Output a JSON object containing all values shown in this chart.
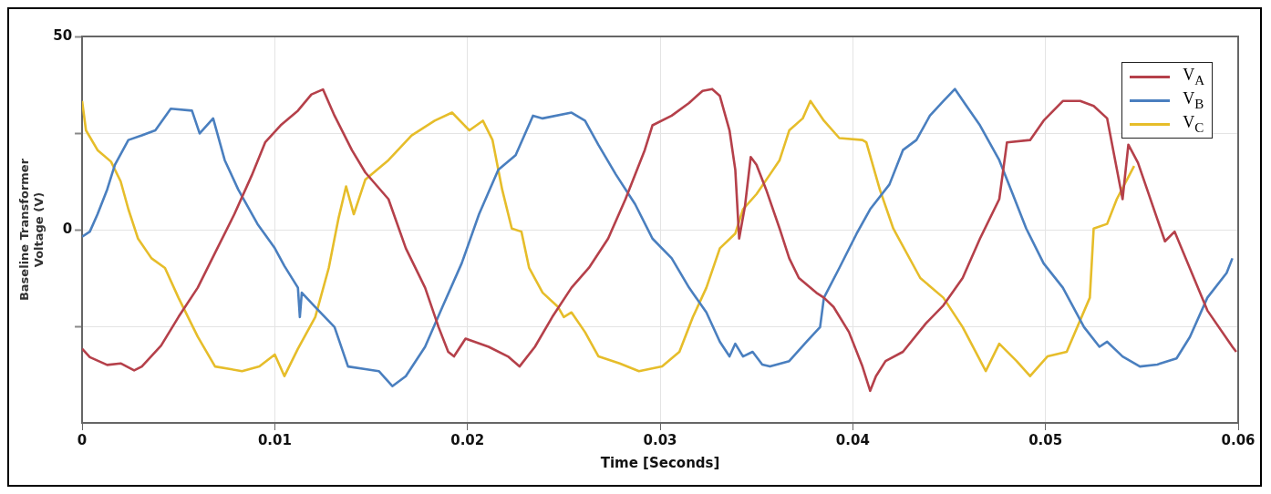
{
  "chart_data": {
    "type": "line",
    "xlabel": "Time [Seconds]",
    "ylabel": "Baseline Transformer\nVoltage (V)",
    "xlim": [
      0,
      0.06
    ],
    "xticks": [
      0,
      0.01,
      0.02,
      0.03,
      0.04,
      0.05,
      0.06
    ],
    "ylim": [
      -50,
      50
    ],
    "yticks": [
      50,
      {
        "value": 25,
        "label": null
      },
      0,
      {
        "value": -25,
        "label": null
      }
    ],
    "grid": true,
    "legend": "top right",
    "marker": "none",
    "line_style": "solid",
    "series": [
      {
        "name": "V$_{A}$",
        "color": "#b5404a",
        "x": [
          0,
          0.0004,
          0.0013,
          0.002,
          0.0027,
          0.0031,
          0.0041,
          0.005,
          0.006,
          0.0069,
          0.0079,
          0.0088,
          0.0095,
          0.0103,
          0.0112,
          0.0119,
          0.0125,
          0.0131,
          0.014,
          0.0147,
          0.0159,
          0.0168,
          0.0178,
          0.0185,
          0.019,
          0.0193,
          0.0199,
          0.0211,
          0.0221,
          0.0227,
          0.0235,
          0.0244,
          0.0254,
          0.0263,
          0.0273,
          0.0282,
          0.0292,
          0.0296,
          0.0306,
          0.0315,
          0.0322,
          0.0327,
          0.0331,
          0.0336,
          0.0339,
          0.0341,
          0.0344,
          0.0347,
          0.035,
          0.0355,
          0.0362,
          0.0367,
          0.0372,
          0.0381,
          0.0385,
          0.039,
          0.0398,
          0.0405,
          0.0409,
          0.0412,
          0.0417,
          0.0426,
          0.0438,
          0.0447,
          0.0457,
          0.0466,
          0.0476,
          0.048,
          0.0492,
          0.0499,
          0.0509,
          0.0518,
          0.0525,
          0.0532,
          0.054,
          0.0543,
          0.0548,
          0.0562,
          0.0567,
          0.0584,
          0.0597,
          0.0599
        ],
        "values": [
          -30.8,
          -33,
          -35,
          -34.6,
          -36.4,
          -35.4,
          -30,
          -22.6,
          -15,
          -6,
          4,
          14,
          22.6,
          27,
          30.8,
          35,
          36.3,
          29.5,
          20.6,
          14.8,
          7.9,
          -4.8,
          -15,
          -25.2,
          -31.6,
          -32.8,
          -28.2,
          -30.3,
          -32.8,
          -35.4,
          -30.3,
          -22.6,
          -15,
          -9.9,
          -2.3,
          7.9,
          20.6,
          27,
          29.5,
          32.8,
          35.9,
          36.4,
          34.6,
          25.7,
          15.5,
          -2.3,
          6,
          18.8,
          16.8,
          10.4,
          0.3,
          -7.4,
          -12.5,
          -16.3,
          -17.6,
          -20,
          -26.5,
          -35.4,
          -41.7,
          -37.9,
          -34,
          -31.6,
          -24.2,
          -19.6,
          -12.5,
          -2.3,
          7.9,
          22.6,
          23.2,
          28.2,
          33.3,
          33.3,
          32,
          28.8,
          7.9,
          22,
          17.3,
          -3,
          -0.5,
          -20.9,
          -30.3,
          -31.6
        ]
      },
      {
        "name": "V$_{B}$",
        "color": "#4a7fbf",
        "x": [
          0,
          0.0004,
          0.0008,
          0.0013,
          0.0017,
          0.0024,
          0.0031,
          0.0038,
          0.0046,
          0.0057,
          0.0061,
          0.0068,
          0.0074,
          0.0081,
          0.0091,
          0.01,
          0.0105,
          0.0112,
          0.0113,
          0.0114,
          0.0121,
          0.0131,
          0.0138,
          0.0147,
          0.0154,
          0.0161,
          0.0168,
          0.0178,
          0.0187,
          0.0197,
          0.0206,
          0.0216,
          0.0225,
          0.0234,
          0.0239,
          0.0254,
          0.0261,
          0.0268,
          0.0277,
          0.0287,
          0.0296,
          0.0306,
          0.0315,
          0.0324,
          0.0331,
          0.0336,
          0.0339,
          0.0343,
          0.0348,
          0.0353,
          0.0357,
          0.0367,
          0.0376,
          0.0383,
          0.0385,
          0.0393,
          0.0402,
          0.0409,
          0.0419,
          0.0426,
          0.0433,
          0.044,
          0.0447,
          0.0453,
          0.0459,
          0.0466,
          0.0476,
          0.0483,
          0.049,
          0.0499,
          0.0509,
          0.052,
          0.0528,
          0.0532,
          0.054,
          0.0549,
          0.0558,
          0.0568,
          0.0575,
          0.0584,
          0.0594,
          0.0597
        ],
        "values": [
          -1.8,
          -0.5,
          4,
          10.4,
          16.8,
          23.2,
          24.4,
          25.7,
          31.3,
          30.8,
          24.9,
          28.8,
          18,
          10.4,
          1.5,
          -4.8,
          -9.4,
          -15,
          -22.6,
          -16.3,
          -20,
          -25.2,
          -35.4,
          -36.1,
          -36.6,
          -40.5,
          -37.9,
          -30.3,
          -20,
          -8.7,
          4,
          15.5,
          19.3,
          29.5,
          28.8,
          30.3,
          28.2,
          21.9,
          14.3,
          6.6,
          -2.3,
          -7.4,
          -15,
          -21.4,
          -29,
          -32.8,
          -29.5,
          -32.8,
          -31.6,
          -34.9,
          -35.4,
          -34,
          -29,
          -25.2,
          -17.6,
          -9.9,
          -1,
          5.3,
          11.7,
          20.6,
          23.2,
          29.5,
          33.3,
          36.4,
          32,
          27,
          18,
          9.2,
          0.3,
          -8.7,
          -15,
          -25.2,
          -30.3,
          -29,
          -32.8,
          -35.4,
          -34.9,
          -33.3,
          -27.7,
          -17.6,
          -11.2,
          -7.4
        ]
      },
      {
        "name": "V$_{C}$",
        "color": "#e6bd2a",
        "x": [
          0,
          0.0002,
          0.0008,
          0.0015,
          0.002,
          0.0024,
          0.0029,
          0.0036,
          0.0043,
          0.005,
          0.006,
          0.0069,
          0.0083,
          0.0092,
          0.01,
          0.0105,
          0.0112,
          0.0121,
          0.0128,
          0.0133,
          0.0137,
          0.0141,
          0.0147,
          0.0159,
          0.0171,
          0.0183,
          0.0192,
          0.0201,
          0.0208,
          0.0213,
          0.0218,
          0.0223,
          0.0228,
          0.0232,
          0.0239,
          0.0247,
          0.025,
          0.0254,
          0.0261,
          0.0268,
          0.0279,
          0.0289,
          0.0301,
          0.031,
          0.0317,
          0.0324,
          0.0331,
          0.0339,
          0.0343,
          0.035,
          0.0357,
          0.0362,
          0.0367,
          0.0374,
          0.0378,
          0.0385,
          0.0393,
          0.0405,
          0.0407,
          0.0414,
          0.0421,
          0.0435,
          0.0447,
          0.0457,
          0.0469,
          0.0476,
          0.0485,
          0.0492,
          0.0501,
          0.0511,
          0.0523,
          0.0525,
          0.0532,
          0.0537,
          0.0546
        ],
        "values": [
          33.3,
          25.7,
          20.6,
          17.6,
          12.5,
          5.3,
          -2.3,
          -7.4,
          -9.9,
          -17.6,
          -27.7,
          -35.4,
          -36.6,
          -35.4,
          -32.3,
          -37.9,
          -30.8,
          -22.6,
          -9.9,
          2.8,
          11.2,
          4,
          13,
          18,
          24.4,
          28.2,
          30.3,
          25.7,
          28.2,
          23.2,
          10.4,
          0.3,
          -0.5,
          -9.9,
          -16.3,
          -20,
          -22.6,
          -21.4,
          -26.5,
          -32.8,
          -34.6,
          -36.6,
          -35.4,
          -31.6,
          -22.6,
          -15,
          -4.8,
          -1,
          5.3,
          9.2,
          14.3,
          18,
          25.7,
          28.8,
          33.3,
          28.2,
          23.7,
          23.2,
          22.6,
          10.4,
          0.3,
          -12.5,
          -17.6,
          -25.2,
          -36.6,
          -29.5,
          -34,
          -37.9,
          -32.8,
          -31.6,
          -17.6,
          0.3,
          1.5,
          7.9,
          16.5
        ]
      }
    ]
  }
}
